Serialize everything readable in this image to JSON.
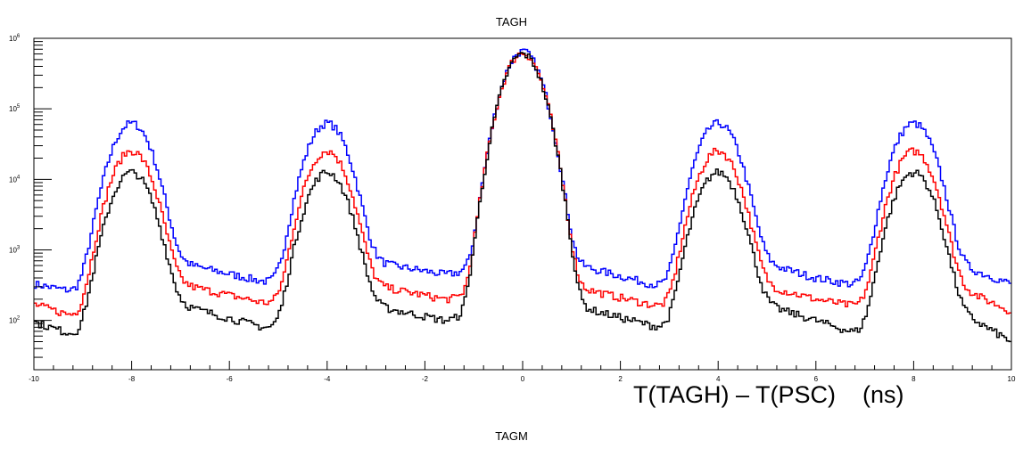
{
  "chart_data": {
    "type": "line",
    "title": "TAGH",
    "xlabel": "T(TAGH) – T(PSC)    (ns)",
    "ylabel": "",
    "x_range": [
      -10,
      10
    ],
    "y_range": [
      20,
      1000000
    ],
    "y_scale": "log",
    "grid": false,
    "x_ticks": [
      "-10",
      "-8",
      "-6",
      "-4",
      "-2",
      "0",
      "2",
      "4",
      "6",
      "8",
      "10"
    ],
    "y_ticks": [
      {
        "base": "10",
        "exp": "2",
        "value": 100
      },
      {
        "base": "10",
        "exp": "3",
        "value": 1000
      },
      {
        "base": "10",
        "exp": "4",
        "value": 10000
      },
      {
        "base": "10",
        "exp": "5",
        "value": 100000
      },
      {
        "base": "10",
        "exp": "6",
        "value": 1000000
      }
    ],
    "peaks_x": [
      -8,
      -4,
      0,
      4,
      8
    ],
    "series": [
      {
        "color": "#0000ff",
        "side_peak_heights": [
          62000,
          62000,
          62000,
          62000
        ],
        "center_peak_height": 650000,
        "valley_levels": [
          {
            "x": -10,
            "y": 330
          },
          {
            "x": -9.1,
            "y": 250
          },
          {
            "x": -7.2,
            "y": 700
          },
          {
            "x": -5.0,
            "y": 320
          },
          {
            "x": -4.9,
            "y": 250
          },
          {
            "x": -3.2,
            "y": 700
          },
          {
            "x": -1.6,
            "y": 450
          },
          {
            "x": -1.2,
            "y": 480
          },
          {
            "x": -0.8,
            "y": 380
          },
          {
            "x": 0.8,
            "y": 700
          },
          {
            "x": 3.1,
            "y": 270
          },
          {
            "x": 4.8,
            "y": 700
          },
          {
            "x": 6.0,
            "y": 400
          },
          {
            "x": 7.0,
            "y": 300
          },
          {
            "x": 7.2,
            "y": 270
          },
          {
            "x": 8.8,
            "y": 650
          },
          {
            "x": 10,
            "y": 330
          }
        ]
      },
      {
        "color": "#ff0000",
        "side_peak_heights": [
          25000,
          25000,
          25000,
          25000
        ],
        "center_peak_height": 620000,
        "valley_levels": [
          {
            "x": -10,
            "y": 170
          },
          {
            "x": -9.1,
            "y": 110
          },
          {
            "x": -7.2,
            "y": 350
          },
          {
            "x": -5.0,
            "y": 160
          },
          {
            "x": -4.9,
            "y": 120
          },
          {
            "x": -3.2,
            "y": 330
          },
          {
            "x": -1.6,
            "y": 200
          },
          {
            "x": -1.2,
            "y": 210
          },
          {
            "x": -0.8,
            "y": 190
          },
          {
            "x": 0.8,
            "y": 330
          },
          {
            "x": 3.1,
            "y": 140
          },
          {
            "x": 4.8,
            "y": 330
          },
          {
            "x": 6.0,
            "y": 200
          },
          {
            "x": 7.0,
            "y": 150
          },
          {
            "x": 7.2,
            "y": 120
          },
          {
            "x": 8.8,
            "y": 320
          },
          {
            "x": 10,
            "y": 135
          }
        ]
      },
      {
        "color": "#000000",
        "side_peak_heights": [
          12500,
          12500,
          12500,
          12500
        ],
        "center_peak_height": 600000,
        "valley_levels": [
          {
            "x": -10,
            "y": 95
          },
          {
            "x": -9.1,
            "y": 60
          },
          {
            "x": -7.2,
            "y": 180
          },
          {
            "x": -5.0,
            "y": 70
          },
          {
            "x": -4.9,
            "y": 60
          },
          {
            "x": -3.2,
            "y": 170
          },
          {
            "x": -1.6,
            "y": 100
          },
          {
            "x": -1.2,
            "y": 110
          },
          {
            "x": -0.8,
            "y": 100
          },
          {
            "x": 0.8,
            "y": 180
          },
          {
            "x": 3.1,
            "y": 70
          },
          {
            "x": 4.8,
            "y": 180
          },
          {
            "x": 6.0,
            "y": 100
          },
          {
            "x": 7.0,
            "y": 60
          },
          {
            "x": 7.2,
            "y": 40
          },
          {
            "x": 8.8,
            "y": 150
          },
          {
            "x": 10,
            "y": 50
          }
        ]
      }
    ]
  },
  "next_panel_title": "TAGM"
}
